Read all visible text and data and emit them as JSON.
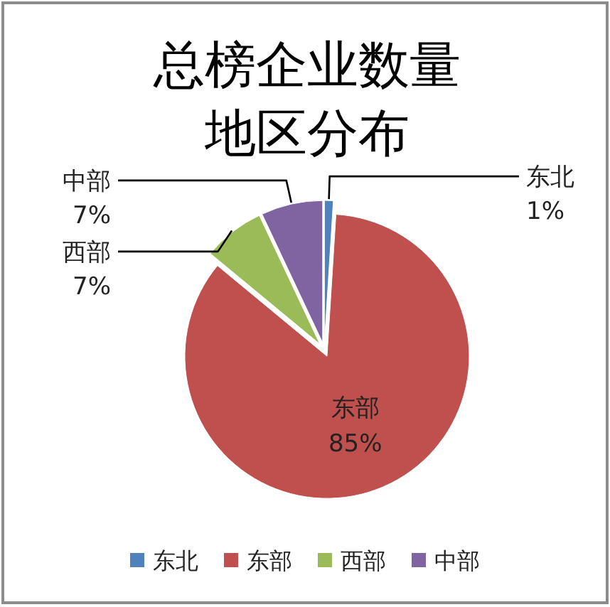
{
  "chart_data": {
    "type": "pie",
    "title": "总榜企业数量地区分布",
    "categories": [
      "东北",
      "东部",
      "西部",
      "中部"
    ],
    "values": [
      1,
      85,
      7,
      7
    ],
    "value_labels": [
      "1%",
      "85%",
      "7%",
      "7%"
    ],
    "colors": [
      "#4f81bd",
      "#c0504d",
      "#9bbb59",
      "#8064a2"
    ],
    "legend": "bottom"
  }
}
